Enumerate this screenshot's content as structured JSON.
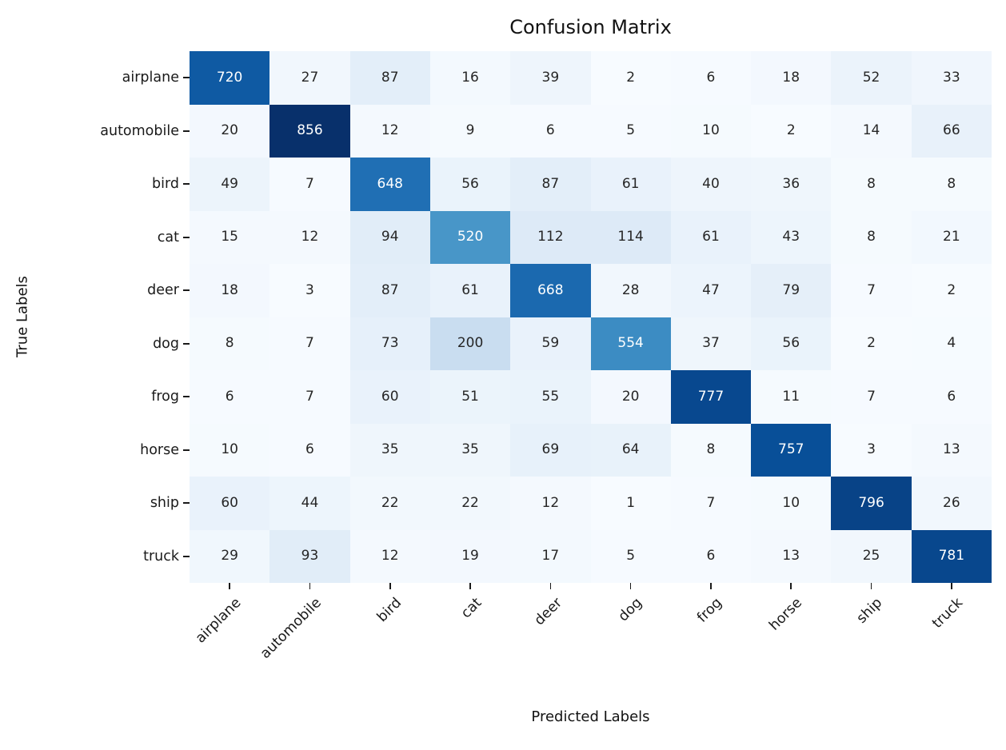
{
  "chart_data": {
    "type": "heatmap",
    "title": "Confusion Matrix",
    "xlabel": "Predicted Labels",
    "ylabel": "True Labels",
    "x_tick_labels": [
      "airplane",
      "automobile",
      "bird",
      "cat",
      "deer",
      "dog",
      "frog",
      "horse",
      "ship",
      "truck"
    ],
    "y_tick_labels": [
      "airplane",
      "automobile",
      "bird",
      "cat",
      "deer",
      "dog",
      "frog",
      "horse",
      "ship",
      "truck"
    ],
    "matrix": [
      [
        720,
        27,
        87,
        16,
        39,
        2,
        6,
        18,
        52,
        33
      ],
      [
        20,
        856,
        12,
        9,
        6,
        5,
        10,
        2,
        14,
        66
      ],
      [
        49,
        7,
        648,
        56,
        87,
        61,
        40,
        36,
        8,
        8
      ],
      [
        15,
        12,
        94,
        520,
        112,
        114,
        61,
        43,
        8,
        21
      ],
      [
        18,
        3,
        87,
        61,
        668,
        28,
        47,
        79,
        7,
        2
      ],
      [
        8,
        7,
        73,
        200,
        59,
        554,
        37,
        56,
        2,
        4
      ],
      [
        6,
        7,
        60,
        51,
        55,
        20,
        777,
        11,
        7,
        6
      ],
      [
        10,
        6,
        35,
        35,
        69,
        64,
        8,
        757,
        3,
        13
      ],
      [
        60,
        44,
        22,
        22,
        12,
        1,
        7,
        10,
        796,
        26
      ],
      [
        29,
        93,
        12,
        19,
        17,
        5,
        6,
        13,
        25,
        781
      ]
    ],
    "vmin": 1,
    "vmax": 856,
    "colormap": "Blues",
    "colormap_stops": [
      "#f7fbff",
      "#deebf7",
      "#c6dbef",
      "#9ecae1",
      "#6baed6",
      "#4292c6",
      "#2171b5",
      "#08519c",
      "#08306b"
    ],
    "annotation_dark_text_color": "#262626",
    "annotation_light_text_color": "#ffffff",
    "grid": false,
    "legend_position": "none",
    "colorbar": false,
    "x_tick_rotation_deg": 45
  }
}
